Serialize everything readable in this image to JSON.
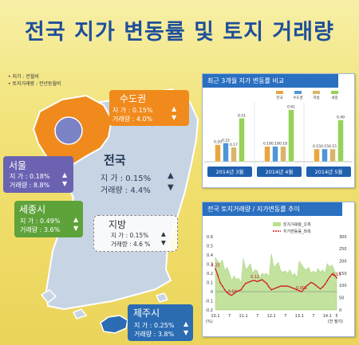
{
  "title": "전국 지가 변동률 및 토지 거래량",
  "notes": [
    "• 지가 : 전월비",
    "• 토지거래량 : 전년동월비"
  ],
  "regions": {
    "capital": {
      "name": "수도권",
      "price": "지  가 : 0.15%",
      "volume": "거래량 : 4.0%",
      "price_dir": "▲",
      "volume_dir": "▼",
      "color": "#f08a1c"
    },
    "seoul": {
      "name": "서울",
      "price": "지  가 : 0.18%",
      "volume": "거래량 : 8.8%",
      "price_dir": "▲",
      "volume_dir": "▼",
      "color": "#6b63b2"
    },
    "sejong": {
      "name": "세종시",
      "price": "지  가 : 0.49%",
      "volume": "거래량 : 3.6%",
      "price_dir": "▲",
      "volume_dir": "▼",
      "color": "#5ea33a"
    },
    "national": {
      "name": "전국",
      "price": "지  가 : 0.15%",
      "volume": "거래량 : 4.4%",
      "price_dir": "▲",
      "volume_dir": "▼"
    },
    "provinces": {
      "name": "지방",
      "price": "지  가 : 0.15%",
      "volume": "거래량 : 4.6 %",
      "price_dir": "▲",
      "volume_dir": "▼"
    },
    "jeju": {
      "name": "제주시",
      "price": "지  가 : 0.25%",
      "volume": "거래량 : 3.8%",
      "price_dir": "▲",
      "volume_dir": "▼",
      "color": "#2b6cb3"
    }
  },
  "colors": {
    "map_fill": "#c7d4e4",
    "map_stroke": "#ffffff",
    "capital_fill": "#f08a1c",
    "seoul_fill": "#7b82c6"
  },
  "bar_panel": {
    "title": "최근 3개월 지가 변동률 비교",
    "legend": [
      "전국",
      "수도권",
      "지방",
      "세종"
    ],
    "legend_colors": [
      "#e9a640",
      "#4f96d8",
      "#d8b56c",
      "#96d25a"
    ],
    "chart_data": {
      "type": "bar",
      "categories": [
        "2014년 3월",
        "2014년 4월",
        "2014년 5월"
      ],
      "series": [
        {
          "name": "전국",
          "values": [
            0.2,
            0.18,
            0.15
          ],
          "labels": [
            "0.20",
            "0.18",
            "0.15"
          ]
        },
        {
          "name": "수도권",
          "values": [
            0.22,
            0.18,
            0.15
          ],
          "labels": [
            "0.22",
            "0.18",
            "0.15"
          ]
        },
        {
          "name": "지방",
          "values": [
            0.17,
            0.18,
            0.15
          ],
          "labels": [
            "0.17",
            "0.18",
            "0.15"
          ]
        },
        {
          "name": "세종",
          "values": [
            0.51,
            0.61,
            0.49
          ],
          "labels": [
            "0.51",
            "0.61",
            "0.49"
          ]
        }
      ],
      "ylim": [
        0,
        0.7
      ]
    }
  },
  "line_panel": {
    "title": "전국 토지거래량 / 지가변동률 추이",
    "legend": [
      "토지거래량_우측",
      "지가변동률_좌측"
    ],
    "legend_colors": [
      "#b8de8e",
      "#d11c1c"
    ],
    "chart_data": {
      "type": "line",
      "x_ticks": [
        "10.1",
        "7",
        "11.1",
        "7",
        "12.1",
        "7",
        "13.1",
        "7",
        "14.1",
        "5"
      ],
      "x_tick_values": [
        0,
        6,
        12,
        18,
        24,
        30,
        36,
        42,
        48,
        52
      ],
      "x": [
        0,
        1,
        2,
        3,
        4,
        5,
        6,
        7,
        8,
        9,
        10,
        11,
        12,
        13,
        14,
        15,
        16,
        17,
        18,
        19,
        20,
        21,
        22,
        23,
        24,
        25,
        26,
        27,
        28,
        29,
        30,
        31,
        32,
        33,
        34,
        35,
        36,
        37,
        38,
        39,
        40,
        41,
        42,
        43,
        44,
        45,
        46,
        47,
        48,
        49,
        50,
        51,
        52
      ],
      "series": [
        {
          "name": "토지거래량_우측",
          "axis": "right",
          "values": [
            215,
            200,
            190,
            205,
            160,
            175,
            150,
            120,
            140,
            125,
            130,
            110,
            210,
            165,
            175,
            190,
            150,
            165,
            160,
            130,
            150,
            145,
            150,
            135,
            230,
            175,
            185,
            195,
            160,
            155,
            160,
            150,
            165,
            140,
            150,
            130,
            200,
            185,
            170,
            165,
            175,
            150,
            160,
            150,
            170,
            155,
            165,
            150,
            190,
            175,
            185,
            160,
            150
          ]
        },
        {
          "name": "지가변동률_좌측",
          "axis": "left",
          "values": [
            0.25,
            0.18,
            0.1,
            0.06,
            0.02,
            -0.01,
            -0.03,
            -0.04,
            -0.02,
            0.0,
            0.01,
            0.02,
            0.06,
            0.09,
            0.1,
            0.11,
            0.12,
            0.12,
            0.11,
            0.12,
            0.13,
            0.11,
            0.09,
            0.05,
            0.02,
            0.03,
            0.04,
            0.05,
            0.06,
            0.06,
            0.06,
            0.06,
            0.05,
            0.04,
            0.03,
            0.02,
            0.01,
            0.0,
            0.03,
            0.06,
            0.08,
            0.1,
            0.09,
            0.07,
            0.05,
            0.03,
            0.05,
            0.08,
            0.12,
            0.16,
            0.19,
            0.18,
            0.15
          ]
        }
      ],
      "annotations": [
        {
          "label": "0.25",
          "x": 0,
          "y": 0.25
        },
        {
          "label": "-0.04",
          "x": 7,
          "y": -0.04
        },
        {
          "label": "0.12",
          "x": 17,
          "y": 0.12
        },
        {
          "label": "0.001",
          "x": 37,
          "y": 0.0
        },
        {
          "label": "0.15",
          "x": 52,
          "y": 0.15
        }
      ],
      "y_left_ticks": [
        "0.6",
        "0.5",
        "0.4",
        "0.3",
        "0.2",
        "0.1",
        "0",
        "-0.1",
        "-0.2"
      ],
      "y_left_tick_values": [
        0.6,
        0.5,
        0.4,
        0.3,
        0.2,
        0.1,
        0,
        -0.1,
        -0.2
      ],
      "y_right_ticks": [
        "300",
        "250",
        "200",
        "150",
        "100",
        "50",
        "0"
      ],
      "y_right_tick_values": [
        300,
        250,
        200,
        150,
        100,
        50,
        0
      ],
      "y_left_unit": "(%)",
      "x_unit": "(천 필지)",
      "ylim_left": [
        -0.2,
        0.6
      ],
      "ylim_right": [
        0,
        300
      ]
    }
  }
}
